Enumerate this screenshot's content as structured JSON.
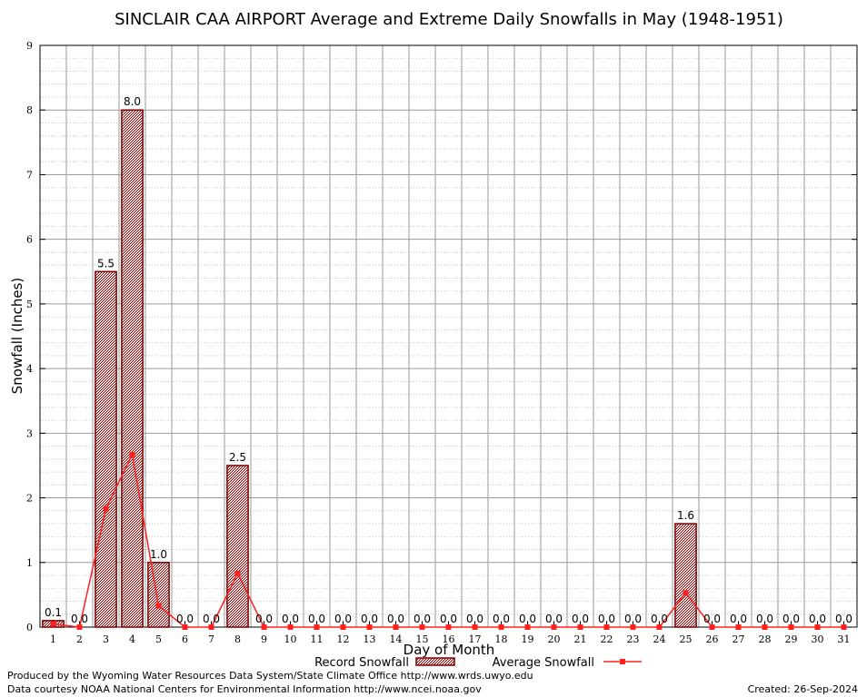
{
  "chart_data": {
    "type": "bar",
    "title": "SINCLAIR CAA AIRPORT Average and Extreme Daily Snowfalls in May (1948-1951)",
    "xlabel": "Day of Month",
    "ylabel": "Snowfall (Inches)",
    "ylim": [
      0,
      9
    ],
    "yticks": [
      "0",
      "1",
      "2",
      "3",
      "4",
      "5",
      "6",
      "7",
      "8",
      "9"
    ],
    "categories": [
      "1",
      "2",
      "3",
      "4",
      "5",
      "6",
      "7",
      "8",
      "9",
      "10",
      "11",
      "12",
      "13",
      "14",
      "15",
      "16",
      "17",
      "18",
      "19",
      "20",
      "21",
      "22",
      "23",
      "24",
      "25",
      "26",
      "27",
      "28",
      "29",
      "30",
      "31"
    ],
    "series": [
      {
        "name": "Record Snowfall",
        "kind": "bar",
        "values": [
          0.1,
          0.0,
          5.5,
          8.0,
          1.0,
          0.0,
          0.0,
          2.5,
          0.0,
          0.0,
          0.0,
          0.0,
          0.0,
          0.0,
          0.0,
          0.0,
          0.0,
          0.0,
          0.0,
          0.0,
          0.0,
          0.0,
          0.0,
          0.0,
          1.6,
          0.0,
          0.0,
          0.0,
          0.0,
          0.0,
          0.0
        ],
        "labels": [
          "0.1",
          "0.0",
          "5.5",
          "8.0",
          "1.0",
          "0.0",
          "0.0",
          "2.5",
          "0.0",
          "0.0",
          "0.0",
          "0.0",
          "0.0",
          "0.0",
          "0.0",
          "0.0",
          "0.0",
          "0.0",
          "0.0",
          "0.0",
          "0.0",
          "0.0",
          "0.0",
          "0.0",
          "1.6",
          "0.0",
          "0.0",
          "0.0",
          "0.0",
          "0.0",
          "0.0"
        ]
      },
      {
        "name": "Average Snowfall",
        "kind": "line",
        "values": [
          0.05,
          0.0,
          1.83,
          2.67,
          0.33,
          0.0,
          0.0,
          0.83,
          0.0,
          0.0,
          0.0,
          0.0,
          0.0,
          0.0,
          0.0,
          0.0,
          0.0,
          0.0,
          0.0,
          0.0,
          0.0,
          0.0,
          0.0,
          0.0,
          0.53,
          0.0,
          0.0,
          0.0,
          0.0,
          0.0,
          0.0
        ]
      }
    ],
    "grid": true,
    "legend_position": "bottom-center"
  },
  "colors": {
    "bar_fill": "#a48080",
    "bar_stroke": "#7a0000",
    "line": "#ff2020",
    "grid": "#a0a0a0"
  },
  "footer": {
    "produced_by": "Produced by the Wyoming Water Resources Data System/State Climate Office http://www.wrds.uwyo.edu",
    "courtesy": "Data courtesy NOAA National Centers for Environmental Information http://www.ncei.noaa.gov",
    "created": "Created: 26-Sep-2024"
  }
}
